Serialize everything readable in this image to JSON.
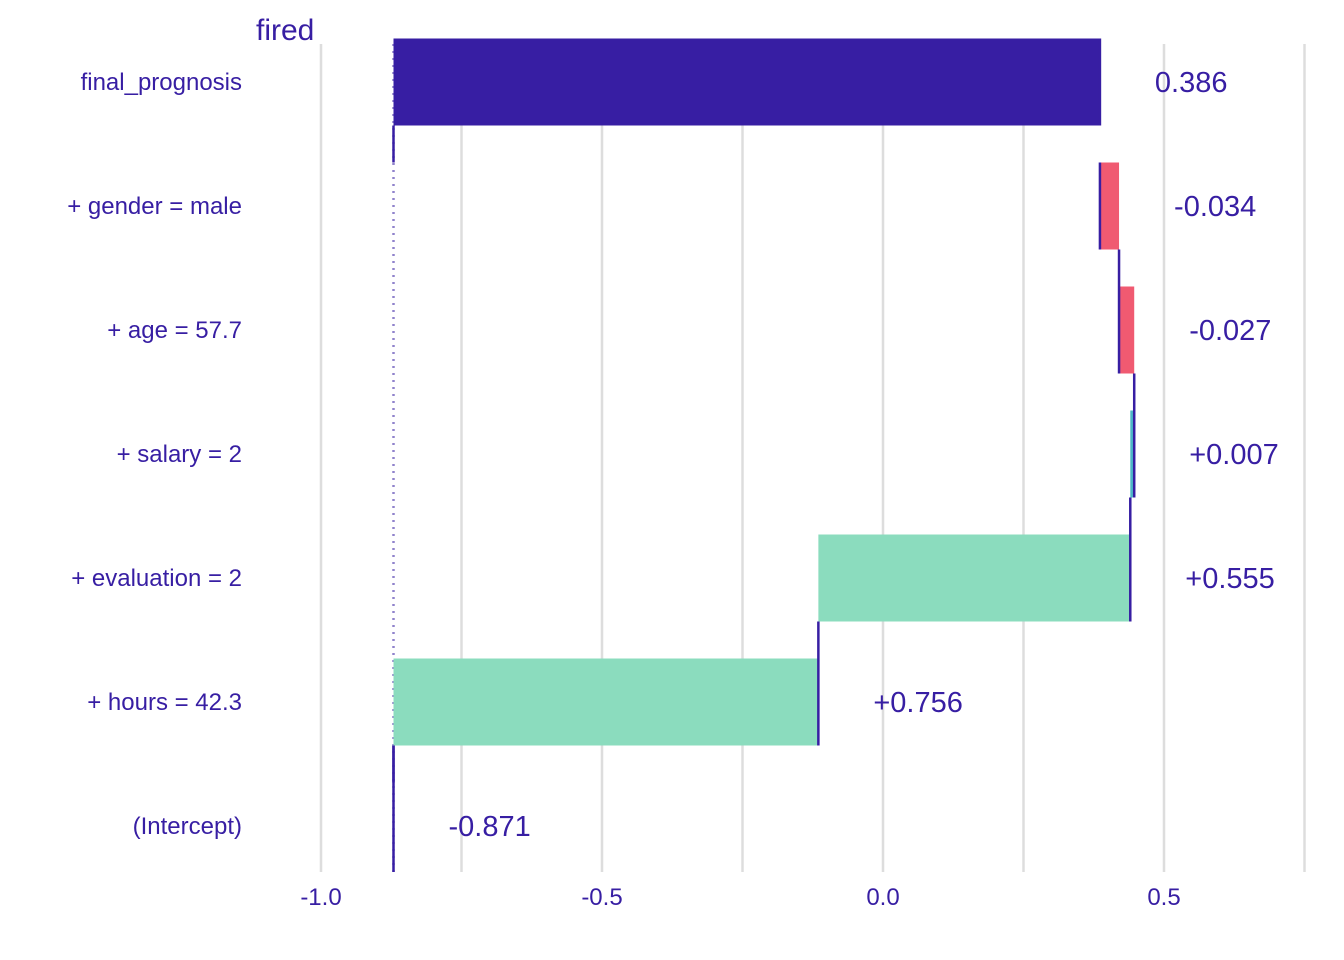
{
  "chart_data": {
    "type": "bar",
    "subtype": "waterfall break-down",
    "title": "fired",
    "xlabel": "",
    "ylabel": "",
    "xlim": [
      -1.13,
      0.76
    ],
    "x_ticks": [
      -1.0,
      -0.5,
      0.0,
      0.5
    ],
    "x_tick_labels": [
      "-1.0",
      "-0.5",
      "0.0",
      "0.5"
    ],
    "grid": true,
    "legend": "none",
    "baseline": -0.871,
    "rows": [
      {
        "label": "final_prognosis",
        "start": -0.871,
        "end": 0.386,
        "value_label": "0.386",
        "kind": "prediction"
      },
      {
        "label": "+ gender = male",
        "start": 0.42,
        "end": 0.386,
        "value_label": "-0.034",
        "kind": "negative"
      },
      {
        "label": "+ age = 57.7",
        "start": 0.447,
        "end": 0.42,
        "value_label": "-0.027",
        "kind": "negative"
      },
      {
        "label": "+ salary = 2",
        "start": 0.44,
        "end": 0.447,
        "value_label": "+0.007",
        "kind": "positive-small"
      },
      {
        "label": "+ evaluation = 2",
        "start": -0.115,
        "end": 0.44,
        "value_label": "+0.555",
        "kind": "positive"
      },
      {
        "label": "+ hours = 42.3",
        "start": -0.871,
        "end": -0.115,
        "value_label": "+0.756",
        "kind": "positive"
      },
      {
        "label": "(Intercept)",
        "start": -0.871,
        "end": -0.871,
        "value_label": "-0.871",
        "kind": "intercept"
      }
    ],
    "colors": {
      "prediction": "#371ea3",
      "negative": "#f05a71",
      "positive": "#8bdcbe",
      "positive-small": "#4db7c7",
      "text": "#371ea3",
      "grid": "#dddddd"
    }
  }
}
